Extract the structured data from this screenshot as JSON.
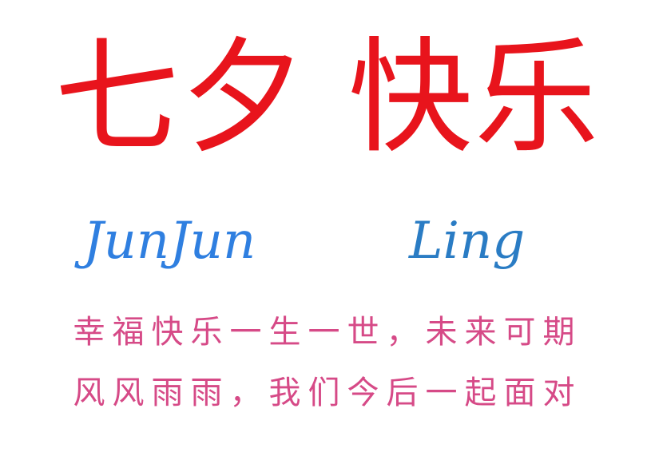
{
  "title": "七夕 快乐",
  "names": {
    "left": "JunJun",
    "right": "Ling"
  },
  "poem": {
    "line1": "幸福快乐一生一世，未来可期",
    "line2": "风风雨雨，我们今后一起面对"
  },
  "colors": {
    "title": "#e8141c",
    "name_left": "#2f7fe0",
    "name_right": "#2a7cc4",
    "poem": "#d64a87"
  }
}
